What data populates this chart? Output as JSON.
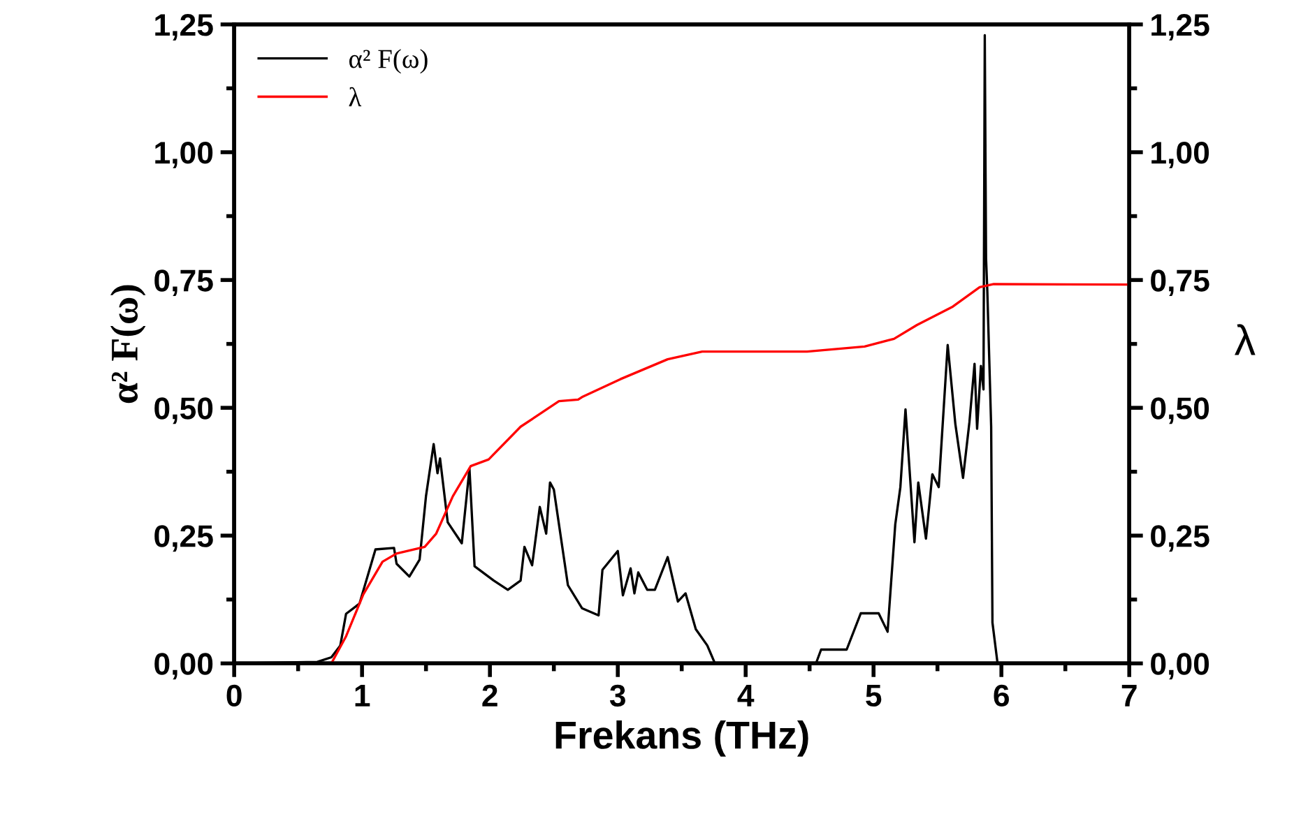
{
  "chart_data": {
    "type": "line",
    "xlabel": "Frekans (THz)",
    "ylabel": "α² F(ω)",
    "y2label": "λ",
    "xlim": [
      0,
      7
    ],
    "xticks": [
      0,
      1,
      2,
      3,
      4,
      5,
      6,
      7
    ],
    "ylim": [
      0,
      1.25
    ],
    "yticks": [
      {
        "value": 0,
        "label": "0,00"
      },
      {
        "value": 0.25,
        "label": "0,25"
      },
      {
        "value": 0.5,
        "label": "0,50"
      },
      {
        "value": 0.75,
        "label": "0,75"
      },
      {
        "value": 1.0,
        "label": "1,00"
      },
      {
        "value": 1.25,
        "label": "1,25"
      }
    ],
    "y2lim": [
      0,
      1.25
    ],
    "y2ticks": [
      {
        "value": 0,
        "label": "0,00"
      },
      {
        "value": 0.25,
        "label": "0,25"
      },
      {
        "value": 0.5,
        "label": "0,50"
      },
      {
        "value": 0.75,
        "label": "0,75"
      },
      {
        "value": 1.0,
        "label": "1,00"
      },
      {
        "value": 1.25,
        "label": "1,25"
      }
    ],
    "legend": "top left",
    "grid": false,
    "series": [
      {
        "name": "α² F(ω)",
        "color": "#000000",
        "x": [
          0,
          0.65,
          0.76,
          0.83,
          0.875,
          0.98,
          1.105,
          1.25,
          1.27,
          1.37,
          1.45,
          1.5,
          1.56,
          1.59,
          1.61,
          1.67,
          1.78,
          1.84,
          1.88,
          2.03,
          2.14,
          2.24,
          2.27,
          2.33,
          2.39,
          2.44,
          2.47,
          2.5,
          2.61,
          2.72,
          2.85,
          2.88,
          3.0,
          3.04,
          3.1,
          3.13,
          3.16,
          3.23,
          3.29,
          3.39,
          3.47,
          3.53,
          3.61,
          3.7,
          3.76,
          4.55,
          4.59,
          4.79,
          4.9,
          5.04,
          5.11,
          5.17,
          5.21,
          5.25,
          5.32,
          5.35,
          5.41,
          5.46,
          5.51,
          5.58,
          5.64,
          5.7,
          5.75,
          5.79,
          5.81,
          5.84,
          5.86,
          5.87,
          5.88,
          5.89,
          5.92,
          5.93,
          5.97
        ],
        "values": [
          0,
          0.003,
          0.012,
          0.035,
          0.097,
          0.117,
          0.223,
          0.226,
          0.195,
          0.17,
          0.203,
          0.327,
          0.429,
          0.372,
          0.401,
          0.276,
          0.235,
          0.381,
          0.19,
          0.162,
          0.144,
          0.162,
          0.228,
          0.192,
          0.306,
          0.254,
          0.354,
          0.34,
          0.153,
          0.108,
          0.094,
          0.183,
          0.22,
          0.133,
          0.186,
          0.137,
          0.178,
          0.144,
          0.144,
          0.208,
          0.121,
          0.137,
          0.067,
          0.035,
          0,
          0,
          0.027,
          0.027,
          0.098,
          0.098,
          0.062,
          0.272,
          0.345,
          0.497,
          0.237,
          0.354,
          0.244,
          0.37,
          0.345,
          0.623,
          0.468,
          0.363,
          0.472,
          0.586,
          0.459,
          0.582,
          0.536,
          1.229,
          0.792,
          0.728,
          0.463,
          0.08,
          0
        ]
      },
      {
        "name": "λ",
        "color": "#ff0000",
        "axis": "y2",
        "x": [
          0,
          0.76,
          0.875,
          1.01,
          1.16,
          1.27,
          1.49,
          1.58,
          1.71,
          1.85,
          1.99,
          2.24,
          2.54,
          2.69,
          2.72,
          3.02,
          3.39,
          3.66,
          4.48,
          4.93,
          5.16,
          5.34,
          5.62,
          5.83,
          5.94,
          7
        ],
        "values": [
          0,
          0,
          0.053,
          0.135,
          0.199,
          0.215,
          0.228,
          0.254,
          0.327,
          0.386,
          0.399,
          0.463,
          0.513,
          0.516,
          0.521,
          0.556,
          0.595,
          0.61,
          0.61,
          0.62,
          0.635,
          0.662,
          0.698,
          0.736,
          0.742,
          0.741
        ]
      }
    ]
  }
}
